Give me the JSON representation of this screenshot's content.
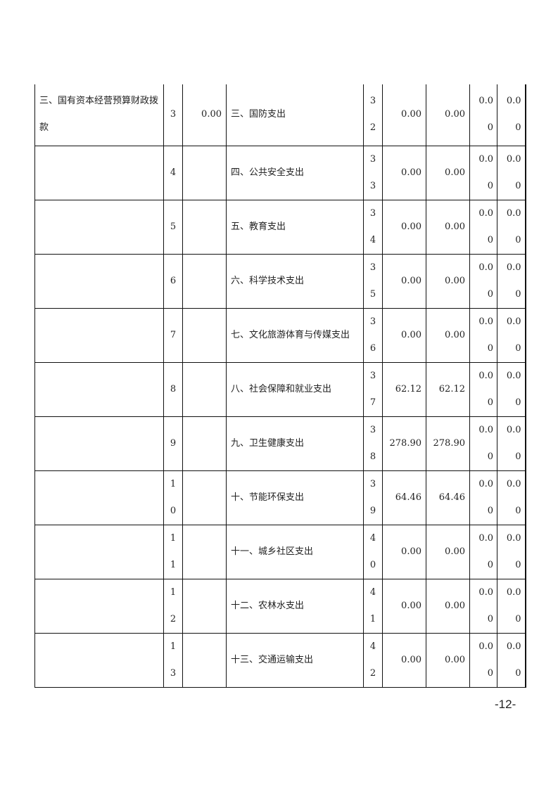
{
  "table": {
    "rows": [
      {
        "income_item": "三、国有资本经营预算财政拨款",
        "line_no": "3",
        "amount": "0.00",
        "expense_item": "三、国防支出",
        "expense_line": "32",
        "total": "0.00",
        "general": "0.00",
        "fund": "0.00",
        "state": "0.00"
      },
      {
        "income_item": "",
        "line_no": "4",
        "amount": "",
        "expense_item": "四、公共安全支出",
        "expense_line": "33",
        "total": "0.00",
        "general": "0.00",
        "fund": "0.00",
        "state": "0.00"
      },
      {
        "income_item": "",
        "line_no": "5",
        "amount": "",
        "expense_item": "五、教育支出",
        "expense_line": "34",
        "total": "0.00",
        "general": "0.00",
        "fund": "0.00",
        "state": "0.00"
      },
      {
        "income_item": "",
        "line_no": "6",
        "amount": "",
        "expense_item": "六、科学技术支出",
        "expense_line": "35",
        "total": "0.00",
        "general": "0.00",
        "fund": "0.00",
        "state": "0.00"
      },
      {
        "income_item": "",
        "line_no": "7",
        "amount": "",
        "expense_item": "七、文化旅游体育与传媒支出",
        "expense_line": "36",
        "total": "0.00",
        "general": "0.00",
        "fund": "0.00",
        "state": "0.00"
      },
      {
        "income_item": "",
        "line_no": "8",
        "amount": "",
        "expense_item": "八、社会保障和就业支出",
        "expense_line": "37",
        "total": "62.12",
        "general": "62.12",
        "fund": "0.00",
        "state": "0.00"
      },
      {
        "income_item": "",
        "line_no": "9",
        "amount": "",
        "expense_item": "九、卫生健康支出",
        "expense_line": "38",
        "total": "278.90",
        "general": "278.90",
        "fund": "0.00",
        "state": "0.00"
      },
      {
        "income_item": "",
        "line_no": "10",
        "amount": "",
        "expense_item": "十、节能环保支出",
        "expense_line": "39",
        "total": "64.46",
        "general": "64.46",
        "fund": "0.00",
        "state": "0.00"
      },
      {
        "income_item": "",
        "line_no": "11",
        "amount": "",
        "expense_item": "十一、城乡社区支出",
        "expense_line": "40",
        "total": "0.00",
        "general": "0.00",
        "fund": "0.00",
        "state": "0.00"
      },
      {
        "income_item": "",
        "line_no": "12",
        "amount": "",
        "expense_item": "十二、农林水支出",
        "expense_line": "41",
        "total": "0.00",
        "general": "0.00",
        "fund": "0.00",
        "state": "0.00"
      },
      {
        "income_item": "",
        "line_no": "13",
        "amount": "",
        "expense_item": "十三、交通运输支出",
        "expense_line": "42",
        "total": "0.00",
        "general": "0.00",
        "fund": "0.00",
        "state": "0.00"
      }
    ]
  },
  "footer": {
    "page_number": "-12-"
  }
}
